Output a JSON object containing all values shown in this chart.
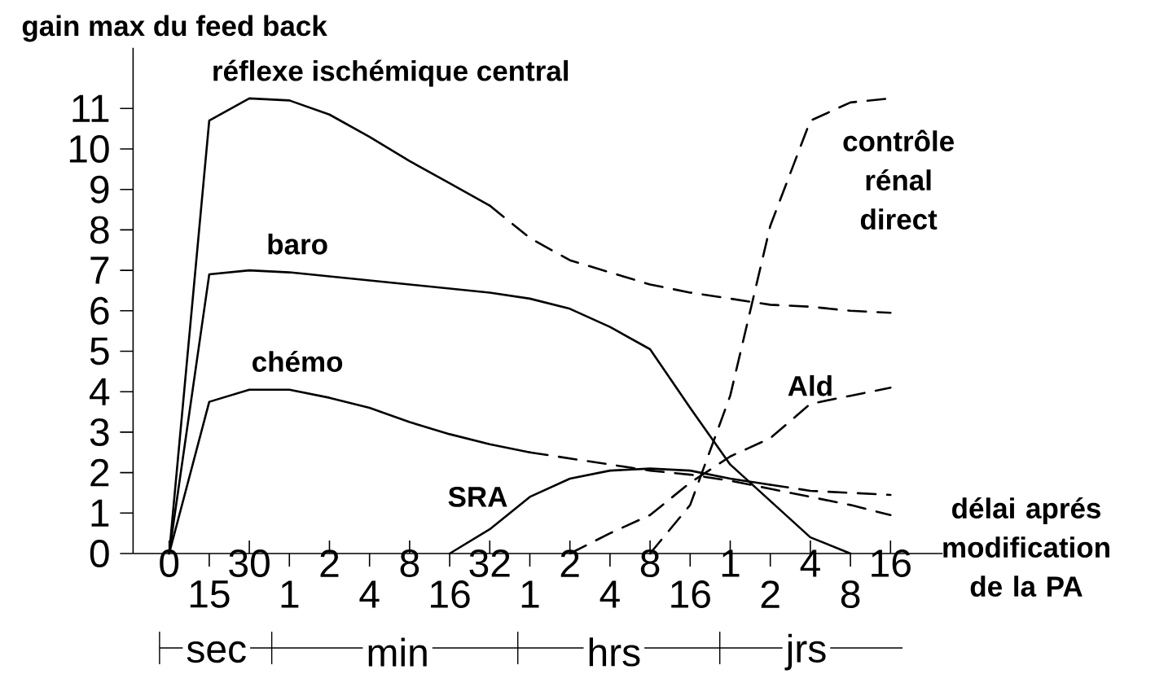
{
  "chart_data": {
    "type": "line",
    "ylabel": "gain max du feed back",
    "xlabel": "délai aprés modification de la PA",
    "categories": [
      "0",
      "15",
      "30",
      "1",
      "2",
      "4",
      "8",
      "16",
      "32",
      "1",
      "2",
      "4",
      "8",
      "16",
      "1",
      "2",
      "4",
      "8",
      "16"
    ],
    "ylim": [
      0,
      12.5
    ],
    "yticks": [
      0,
      1,
      2,
      3,
      4,
      5,
      6,
      7,
      8,
      9,
      10,
      11
    ],
    "annotations": [
      "sec",
      "min",
      "hrs",
      "jrs"
    ],
    "series": [
      {
        "name": "réflexe ischémique central",
        "color": "#000000",
        "line_style": "solid",
        "values": [
          0,
          10.7,
          11.25,
          11.2,
          10.85,
          10.3,
          9.7,
          9.15,
          8.6,
          null,
          null,
          null,
          null,
          null,
          null,
          null,
          null,
          null,
          null
        ]
      },
      {
        "color": "#000000",
        "line_style": "dashed",
        "values": [
          null,
          null,
          null,
          null,
          null,
          null,
          null,
          null,
          8.6,
          7.8,
          7.25,
          6.95,
          6.65,
          6.45,
          6.3,
          6.15,
          6.1,
          6.0,
          5.95
        ]
      },
      {
        "name": "baro",
        "color": "#000000",
        "line_style": "solid",
        "values": [
          0,
          6.9,
          7.0,
          6.95,
          6.85,
          6.75,
          6.65,
          6.55,
          6.45,
          6.3,
          6.05,
          5.6,
          5.05,
          3.6,
          2.2,
          1.3,
          0.4,
          0,
          null
        ]
      },
      {
        "name": "chémo",
        "color": "#000000",
        "line_style": "solid",
        "values": [
          0,
          3.75,
          4.05,
          4.05,
          3.85,
          3.6,
          3.25,
          2.95,
          2.7,
          2.5,
          null,
          null,
          null,
          null,
          null,
          null,
          null,
          null,
          null
        ]
      },
      {
        "color": "#000000",
        "line_style": "dashed",
        "values": [
          null,
          null,
          null,
          null,
          null,
          null,
          null,
          null,
          null,
          2.5,
          2.35,
          2.2,
          2.05,
          1.95,
          1.8,
          1.6,
          1.4,
          1.2,
          0.95
        ]
      },
      {
        "name": "SRA",
        "color": "#000000",
        "line_style": "solid",
        "values": [
          null,
          null,
          null,
          null,
          null,
          null,
          null,
          0,
          0.6,
          1.4,
          1.85,
          2.05,
          2.1,
          2.05,
          1.85,
          1.7,
          null,
          null,
          null
        ]
      },
      {
        "color": "#000000",
        "line_style": "dashed",
        "values": [
          null,
          null,
          null,
          null,
          null,
          null,
          null,
          null,
          null,
          null,
          null,
          null,
          null,
          null,
          null,
          1.7,
          1.55,
          1.5,
          1.45
        ]
      },
      {
        "name": "Ald",
        "color": "#000000",
        "line_style": "dashed",
        "values": [
          null,
          null,
          null,
          null,
          null,
          null,
          null,
          null,
          null,
          null,
          0,
          0.5,
          0.95,
          1.75,
          2.4,
          2.85,
          3.7,
          3.9,
          4.1
        ]
      },
      {
        "name": "contrôle rénal direct",
        "color": "#000000",
        "line_style": "dashed",
        "values": [
          null,
          null,
          null,
          null,
          null,
          null,
          null,
          null,
          null,
          null,
          null,
          null,
          0,
          1.2,
          3.9,
          8.1,
          10.7,
          11.15,
          11.25
        ]
      }
    ]
  }
}
